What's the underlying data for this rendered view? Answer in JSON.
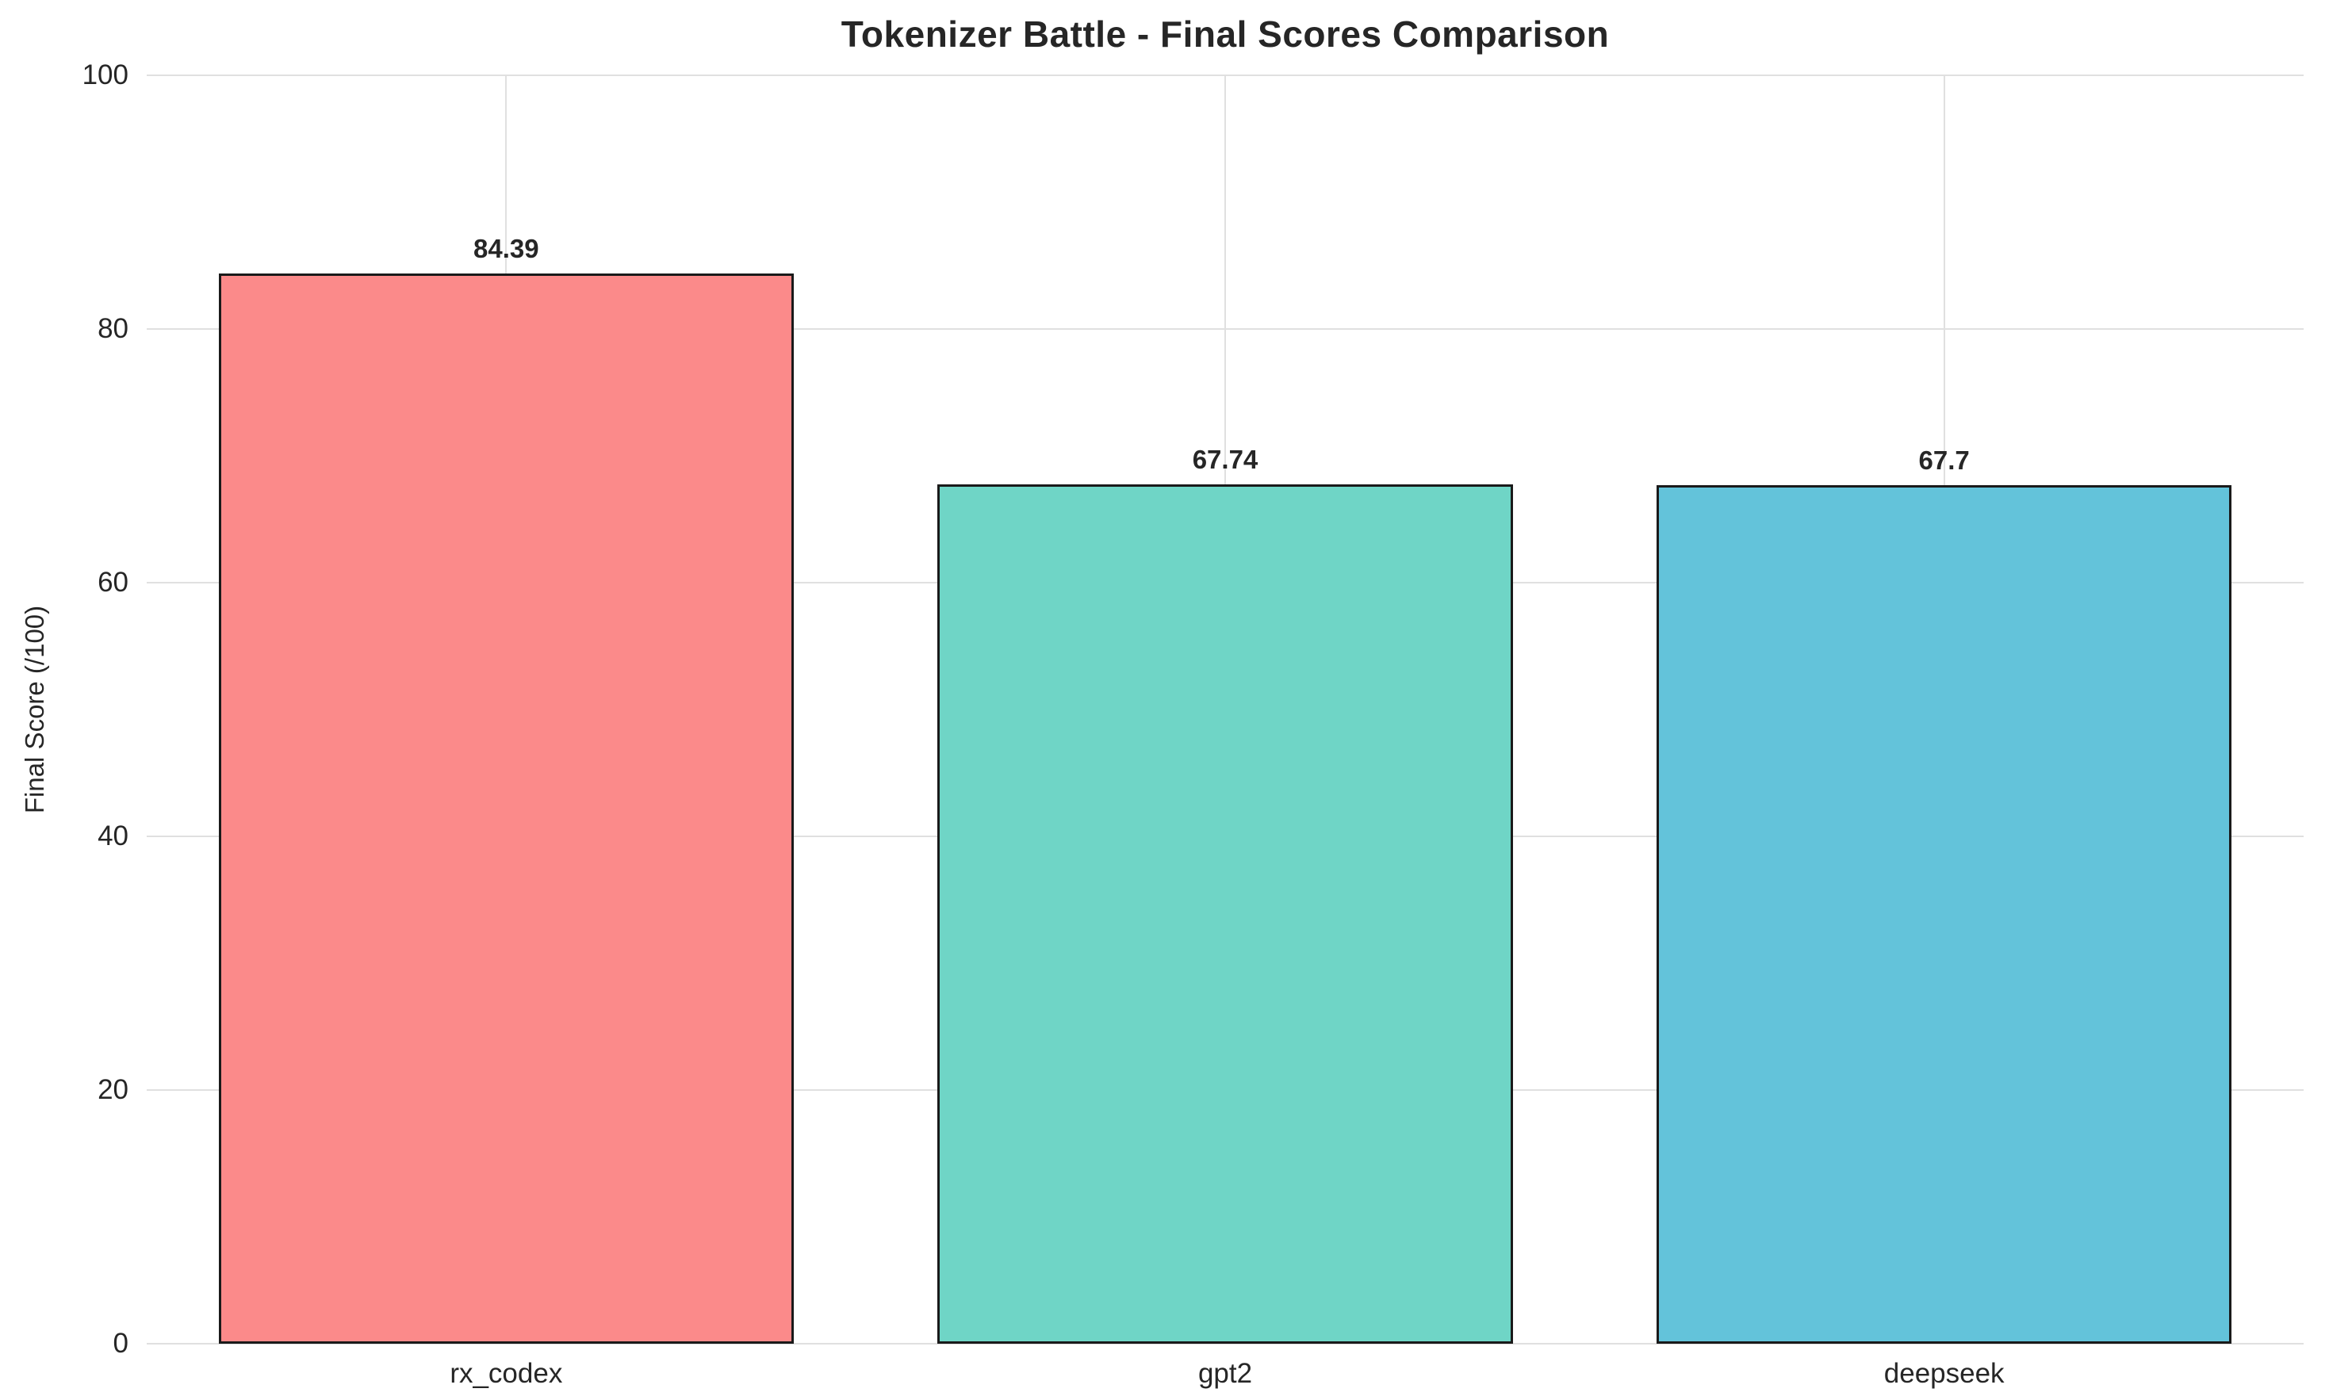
{
  "chart_data": {
    "type": "bar",
    "title": "Tokenizer Battle - Final Scores Comparison",
    "xlabel": "",
    "ylabel": "Final Score (/100)",
    "categories": [
      "rx_codex",
      "gpt2",
      "deepseek"
    ],
    "values": [
      84.39,
      67.74,
      67.7
    ],
    "value_labels": [
      "84.39",
      "67.74",
      "67.7"
    ],
    "bar_colors": [
      "#fb8a8a",
      "#6fd5c6",
      "#63c3da"
    ],
    "bar_edge_color": "#1a1a1a",
    "ylim": [
      0,
      100
    ],
    "yticks": [
      0,
      20,
      40,
      60,
      80,
      100
    ],
    "grid": true,
    "grid_color": "#e0e0e0",
    "background_color": "#ffffff",
    "legend": "none",
    "bar_width_fraction": 0.8
  }
}
